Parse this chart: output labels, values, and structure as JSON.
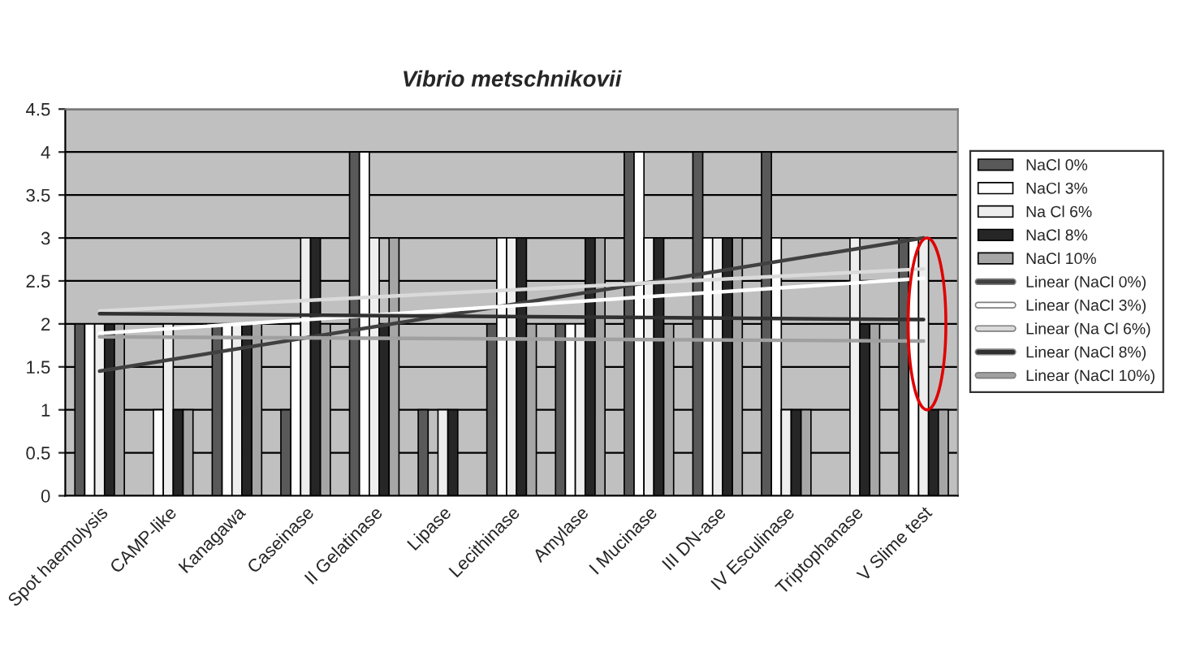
{
  "chart_data": {
    "type": "bar",
    "title": "Vibrio metschnikovii",
    "categories": [
      "Spot haemolysis",
      "CAMP-like",
      "Kanagawa",
      "Caseinase",
      "II Gelatinase",
      "Lipase",
      "Lecithinase",
      "Amylase",
      "I Mucinase",
      "III DN-ase",
      "IV Esculinase",
      "Triptophanase",
      "V Slime test"
    ],
    "series": [
      {
        "name": "NaCl 0%",
        "color": "#595959",
        "values": [
          2,
          0,
          2,
          1,
          4,
          1,
          2,
          2,
          4,
          4,
          4,
          0,
          3
        ]
      },
      {
        "name": "NaCl 3%",
        "color": "#ffffff",
        "values": [
          2,
          1,
          2,
          2,
          4,
          0,
          3,
          2,
          4,
          3,
          3,
          0,
          3
        ]
      },
      {
        "name": "Na Cl 6%",
        "color": "#eeeeee",
        "values": [
          2,
          2,
          2,
          3,
          3,
          1,
          3,
          2,
          3,
          3,
          1,
          3,
          3
        ]
      },
      {
        "name": "NaCl 8%",
        "color": "#262626",
        "values": [
          2,
          1,
          2,
          3,
          2,
          1,
          3,
          3,
          3,
          3,
          1,
          2,
          1
        ]
      },
      {
        "name": "NaCl 10%",
        "color": "#a6a6a6",
        "values": [
          2,
          1,
          2,
          2,
          3,
          0,
          2,
          3,
          2,
          3,
          1,
          2,
          1
        ]
      },
      {
        "name": "Linear (NaCl 0%)",
        "type": "line",
        "color": "#404040",
        "x": [
          "Spot haemolysis",
          "V Slime test"
        ],
        "values": [
          1.45,
          3.0
        ]
      },
      {
        "name": "Linear (NaCl 3%)",
        "type": "line",
        "color": "#ffffff",
        "x": [
          "Spot haemolysis",
          "V Slime test"
        ],
        "values": [
          1.89,
          2.53
        ]
      },
      {
        "name": "Linear (Na Cl 6%)",
        "type": "line",
        "color": "#dadada",
        "x": [
          "Spot haemolysis",
          "V Slime test"
        ],
        "values": [
          2.15,
          2.64
        ]
      },
      {
        "name": "Linear (NaCl 8%)",
        "type": "line",
        "color": "#303030",
        "x": [
          "Spot haemolysis",
          "V Slime test"
        ],
        "values": [
          2.12,
          2.05
        ]
      },
      {
        "name": "Linear (NaCl 10%)",
        "type": "line",
        "color": "#a0a0a0",
        "x": [
          "Spot haemolysis",
          "V Slime test"
        ],
        "values": [
          1.85,
          1.8
        ]
      }
    ],
    "ylim": [
      0,
      4.5
    ],
    "yticks": [
      0,
      0.5,
      1,
      1.5,
      2,
      2.5,
      3,
      3.5,
      4,
      4.5
    ],
    "grid": "y",
    "legend": "right"
  }
}
